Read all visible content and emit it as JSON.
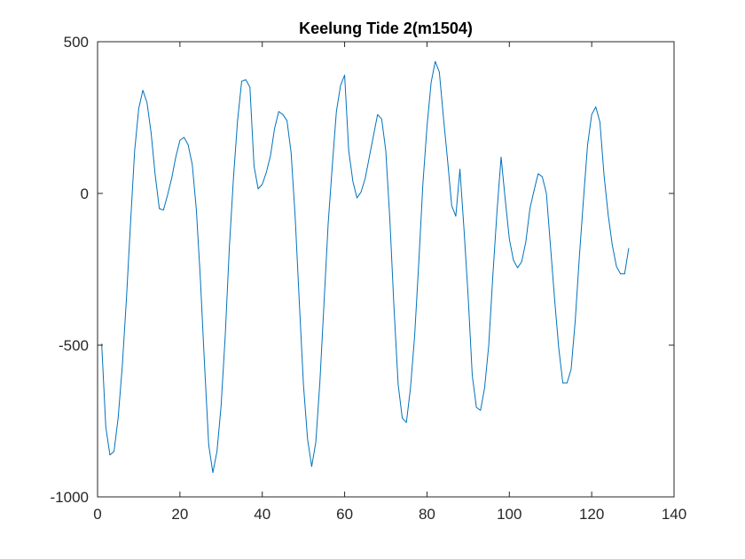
{
  "chart_data": {
    "type": "line",
    "title": "Keelung Tide 2(m1504)",
    "xlabel": "",
    "ylabel": "",
    "xlim": [
      0,
      140
    ],
    "ylim": [
      -1000,
      500
    ],
    "xticks": [
      0,
      20,
      40,
      60,
      80,
      100,
      120,
      140
    ],
    "yticks": [
      -1000,
      -500,
      0,
      500
    ],
    "xtick_labels": [
      "0",
      "20",
      "40",
      "60",
      "80",
      "100",
      "120",
      "140"
    ],
    "ytick_labels": [
      "-1000",
      "-500",
      "0",
      "500"
    ],
    "grid": false,
    "legend": "none",
    "series": [
      {
        "color": "#0072BD",
        "x": [
          1,
          2,
          3,
          4,
          5,
          6,
          7,
          8,
          9,
          10,
          11,
          12,
          13,
          14,
          15,
          16,
          17,
          18,
          19,
          20,
          21,
          22,
          23,
          24,
          25,
          26,
          27,
          28,
          29,
          30,
          31,
          32,
          33,
          34,
          35,
          36,
          37,
          38,
          39,
          40,
          41,
          42,
          43,
          44,
          45,
          46,
          47,
          48,
          49,
          50,
          51,
          52,
          53,
          54,
          55,
          56,
          57,
          58,
          59,
          60,
          61,
          62,
          63,
          64,
          65,
          66,
          67,
          68,
          69,
          70,
          71,
          72,
          73,
          74,
          75,
          76,
          77,
          78,
          79,
          80,
          81,
          82,
          83,
          84,
          85,
          86,
          87,
          88,
          89,
          90,
          91,
          92,
          93,
          94,
          95,
          96,
          97,
          98,
          99,
          100,
          101,
          102,
          103,
          104,
          105,
          106,
          107,
          108,
          109,
          110,
          111,
          112,
          113,
          114,
          115,
          116,
          117,
          118,
          119,
          120,
          121,
          122,
          123,
          124,
          125,
          126,
          127,
          128,
          129
        ],
        "y": [
          -495,
          -770,
          -862,
          -850,
          -740,
          -570,
          -350,
          -100,
          140,
          280,
          340,
          300,
          200,
          60,
          -50,
          -55,
          -5,
          50,
          120,
          175,
          185,
          160,
          95,
          -55,
          -290,
          -570,
          -830,
          -920,
          -850,
          -700,
          -470,
          -180,
          50,
          240,
          370,
          375,
          350,
          90,
          15,
          30,
          70,
          125,
          215,
          270,
          260,
          240,
          135,
          -80,
          -360,
          -630,
          -810,
          -900,
          -820,
          -620,
          -360,
          -100,
          90,
          270,
          355,
          390,
          140,
          40,
          -15,
          5,
          50,
          120,
          190,
          260,
          245,
          140,
          -90,
          -380,
          -630,
          -740,
          -755,
          -640,
          -470,
          -230,
          30,
          220,
          365,
          435,
          400,
          250,
          110,
          -40,
          -75,
          80,
          -120,
          -340,
          -600,
          -705,
          -715,
          -640,
          -500,
          -270,
          -60,
          120,
          -20,
          -150,
          -220,
          -245,
          -225,
          -160,
          -50,
          10,
          65,
          55,
          0,
          -175,
          -350,
          -510,
          -625,
          -625,
          -580,
          -420,
          -210,
          -20,
          160,
          260,
          285,
          235,
          60,
          -70,
          -170,
          -240,
          -265,
          -265,
          -180
        ]
      }
    ]
  }
}
